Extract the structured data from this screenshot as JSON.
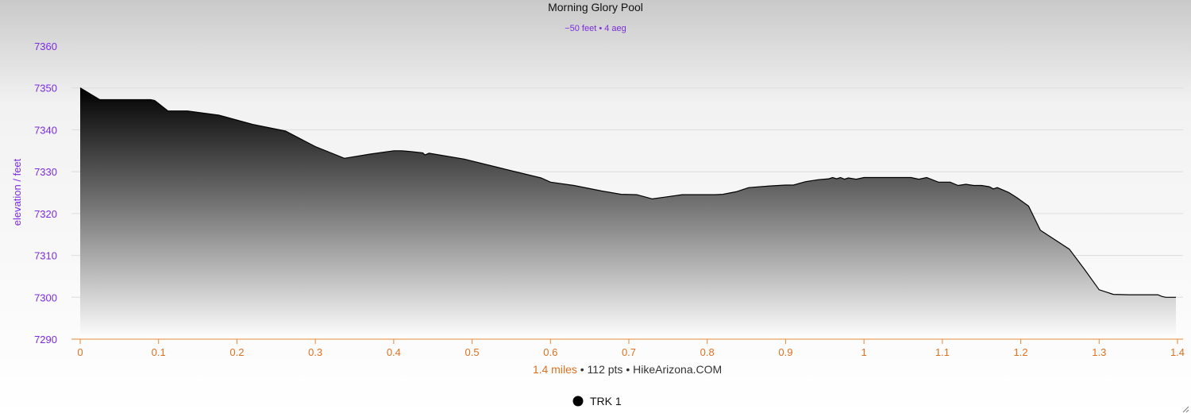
{
  "chart_data": {
    "type": "area",
    "title": "Morning Glory Pool",
    "subtitle": "−50 feet • 4 aeg",
    "ylabel": "elevation / feet",
    "xlabel_parts": {
      "distance": "1.4 miles",
      "sep1": " • ",
      "points": "112 pts",
      "sep2": " • ",
      "source": "HikeArizona.COM"
    },
    "xlim": [
      0,
      1.4
    ],
    "ylim": [
      7290,
      7360
    ],
    "x_ticks": [
      "0",
      "0.1",
      "0.2",
      "0.3",
      "0.4",
      "0.5",
      "0.6",
      "0.7",
      "0.8",
      "0.9",
      "1",
      "1.1",
      "1.2",
      "1.3",
      "1.4"
    ],
    "y_ticks": [
      "7290",
      "7300",
      "7310",
      "7320",
      "7330",
      "7340",
      "7350",
      "7360"
    ],
    "grid": true,
    "legend_position": "bottom-center",
    "colors": {
      "axis_y": "#7b2be0",
      "axis_x": "#e0701e",
      "line": "#000000",
      "fill_top": "#000000",
      "fill_bottom": "#ffffff"
    },
    "series": [
      {
        "name": "TRK 1",
        "x": [
          0.0,
          0.025,
          0.05,
          0.09,
          0.095,
          0.112,
          0.137,
          0.177,
          0.22,
          0.262,
          0.3,
          0.337,
          0.37,
          0.4,
          0.41,
          0.422,
          0.437,
          0.44,
          0.445,
          0.49,
          0.54,
          0.588,
          0.6,
          0.63,
          0.665,
          0.69,
          0.71,
          0.73,
          0.745,
          0.768,
          0.81,
          0.82,
          0.837,
          0.853,
          0.88,
          0.9,
          0.91,
          0.925,
          0.942,
          0.955,
          0.96,
          0.965,
          0.97,
          0.975,
          0.98,
          0.99,
          1.0,
          1.02,
          1.05,
          1.06,
          1.07,
          1.08,
          1.095,
          1.11,
          1.12,
          1.13,
          1.14,
          1.15,
          1.16,
          1.165,
          1.17,
          1.185,
          1.195,
          1.21,
          1.225,
          1.262,
          1.282,
          1.3,
          1.318,
          1.338,
          1.35,
          1.375,
          1.38,
          1.385,
          1.398
        ],
        "values": [
          7350,
          7347.2,
          7347.2,
          7347.2,
          7347.0,
          7344.5,
          7344.5,
          7343.5,
          7341.3,
          7339.7,
          7336.0,
          7333.2,
          7334.2,
          7335.0,
          7335.0,
          7334.8,
          7334.5,
          7334.0,
          7334.4,
          7333.0,
          7330.7,
          7328.5,
          7327.5,
          7326.7,
          7325.4,
          7324.6,
          7324.5,
          7323.5,
          7323.9,
          7324.5,
          7324.5,
          7324.6,
          7325.2,
          7326.2,
          7326.6,
          7326.8,
          7326.8,
          7327.6,
          7328.1,
          7328.3,
          7328.6,
          7328.3,
          7328.6,
          7328.2,
          7328.5,
          7328.2,
          7328.6,
          7328.6,
          7328.6,
          7328.6,
          7328.2,
          7328.6,
          7327.5,
          7327.5,
          7326.7,
          7327.0,
          7326.7,
          7326.7,
          7326.4,
          7325.9,
          7326.2,
          7325.0,
          7323.8,
          7321.8,
          7316.0,
          7311.5,
          7306.5,
          7301.8,
          7300.7,
          7300.6,
          7300.6,
          7300.6,
          7300.2,
          7300.0,
          7300.0
        ]
      }
    ]
  }
}
